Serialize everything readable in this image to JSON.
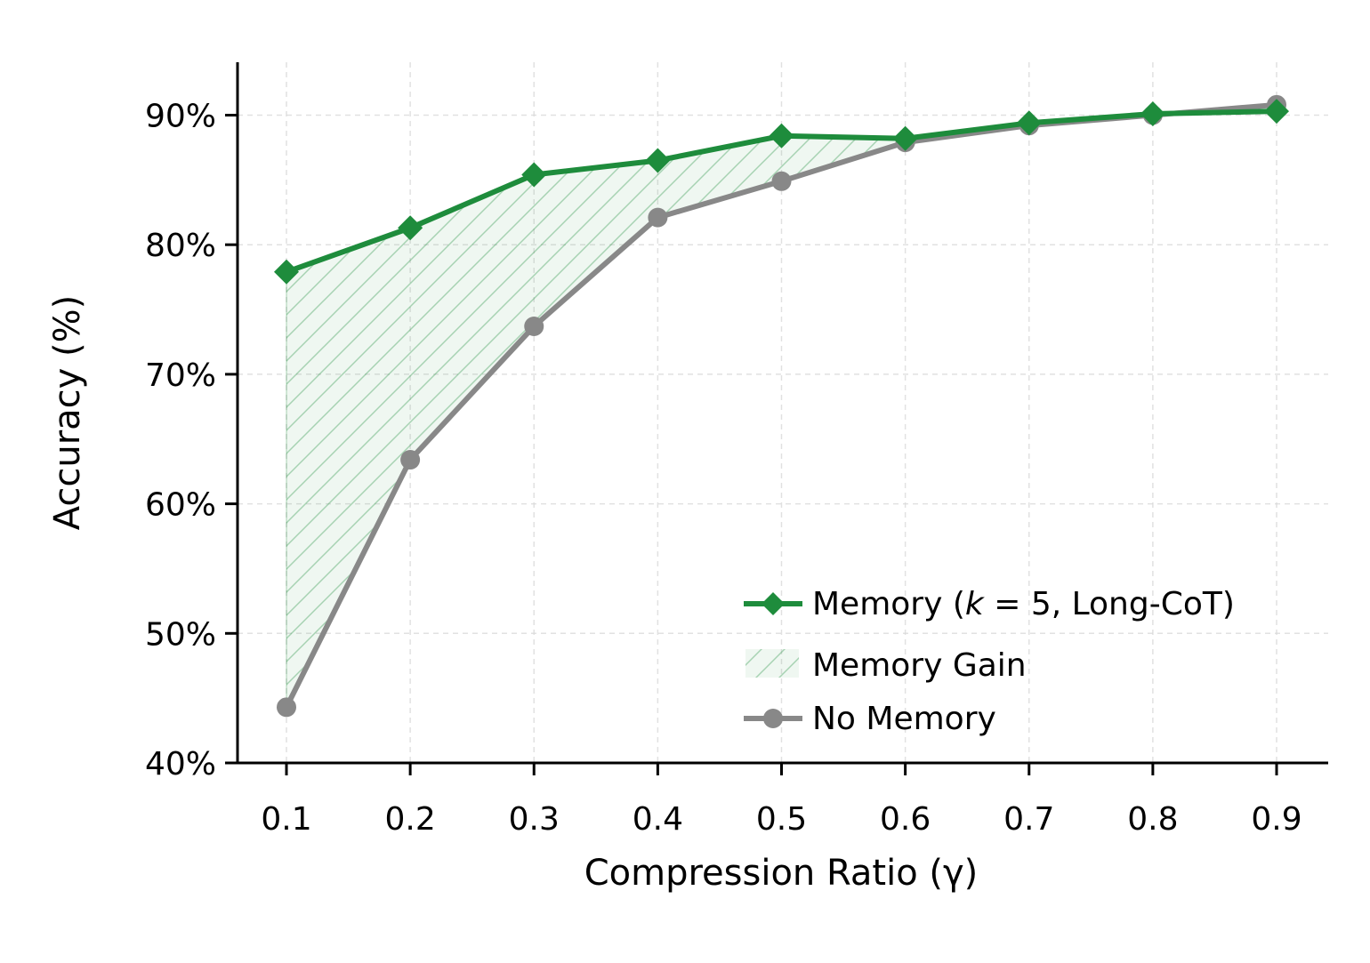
{
  "chart_data": {
    "type": "line",
    "title": "",
    "xlabel": "Compression Ratio (γ)",
    "ylabel": "Accuracy (%)",
    "x": [
      0.1,
      0.2,
      0.3,
      0.4,
      0.5,
      0.6,
      0.7,
      0.8,
      0.9
    ],
    "xticks": [
      "0.1",
      "0.2",
      "0.3",
      "0.4",
      "0.5",
      "0.6",
      "0.7",
      "0.8",
      "0.9"
    ],
    "xlim": [
      0.06,
      0.94
    ],
    "ylim": [
      40,
      94
    ],
    "yticks": [
      40,
      50,
      60,
      70,
      80,
      90
    ],
    "ytick_labels": [
      "40%",
      "50%",
      "60%",
      "70%",
      "80%",
      "90%"
    ],
    "grid": true,
    "legend_position": "lower-right",
    "series": [
      {
        "name": "Memory (k = 5, Long-CoT)",
        "legend_prefix": "Memory (",
        "legend_k": "k",
        "legend_suffix": " = 5, Long-CoT)",
        "color": "#1e8c3c",
        "marker": "diamond",
        "values": [
          77.9,
          81.3,
          85.4,
          86.5,
          88.4,
          88.2,
          89.4,
          90.1,
          90.3
        ]
      },
      {
        "name": "No Memory",
        "color": "#888888",
        "marker": "circle",
        "values": [
          44.3,
          63.4,
          73.7,
          82.1,
          84.9,
          87.9,
          89.2,
          90.0,
          90.8
        ]
      }
    ],
    "fill_between": {
      "name": "Memory Gain",
      "color": "#1e8c3c",
      "pattern": "diagonal-hatch",
      "between": [
        "Memory (k = 5, Long-CoT)",
        "No Memory"
      ]
    }
  }
}
